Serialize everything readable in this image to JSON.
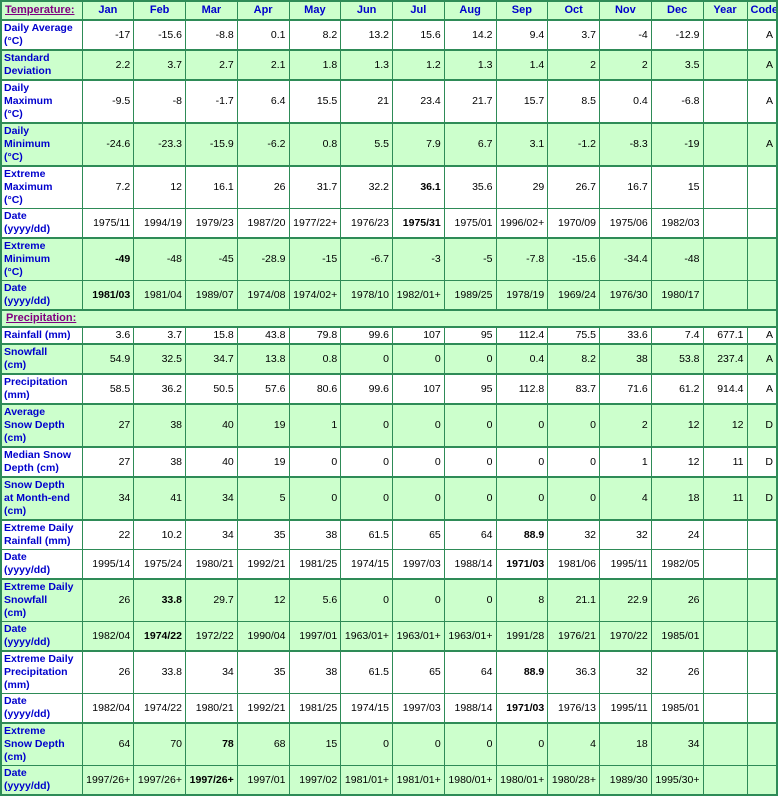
{
  "colors": {
    "border_green": "#2E8B57",
    "row_shade_green": "#CCFFCC",
    "label_blue": "#0000CC",
    "section_link_purple": "#800080",
    "value_black": "#000000"
  },
  "columns": {
    "months": [
      "Jan",
      "Feb",
      "Mar",
      "Apr",
      "May",
      "Jun",
      "Jul",
      "Aug",
      "Sep",
      "Oct",
      "Nov",
      "Dec"
    ],
    "year_label": "Year",
    "code_label": "Code"
  },
  "sections": {
    "temperature": {
      "title": "Temperature:"
    },
    "precipitation": {
      "title": "Precipitation:"
    }
  },
  "temperature_rows": [
    {
      "label": "Daily Average\n(°C)",
      "date": false,
      "shade": false,
      "bold": -1,
      "values": [
        "-17",
        "-15.6",
        "-8.8",
        "0.1",
        "8.2",
        "13.2",
        "15.6",
        "14.2",
        "9.4",
        "3.7",
        "-4",
        "-12.9"
      ],
      "year": "",
      "code": "A"
    },
    {
      "label": "Standard\nDeviation",
      "date": false,
      "shade": true,
      "bold": -1,
      "values": [
        "2.2",
        "3.7",
        "2.7",
        "2.1",
        "1.8",
        "1.3",
        "1.2",
        "1.3",
        "1.4",
        "2",
        "2",
        "3.5"
      ],
      "year": "",
      "code": "A"
    },
    {
      "label": "Daily\nMaximum\n(°C)",
      "date": false,
      "shade": false,
      "bold": -1,
      "values": [
        "-9.5",
        "-8",
        "-1.7",
        "6.4",
        "15.5",
        "21",
        "23.4",
        "21.7",
        "15.7",
        "8.5",
        "0.4",
        "-6.8"
      ],
      "year": "",
      "code": "A"
    },
    {
      "label": "Daily\nMinimum\n(°C)",
      "date": false,
      "shade": true,
      "bold": -1,
      "values": [
        "-24.6",
        "-23.3",
        "-15.9",
        "-6.2",
        "0.8",
        "5.5",
        "7.9",
        "6.7",
        "3.1",
        "-1.2",
        "-8.3",
        "-19"
      ],
      "year": "",
      "code": "A"
    },
    {
      "label": "Extreme\nMaximum\n(°C)",
      "date": false,
      "shade": false,
      "bold": 6,
      "values": [
        "7.2",
        "12",
        "16.1",
        "26",
        "31.7",
        "32.2",
        "36.1",
        "35.6",
        "29",
        "26.7",
        "16.7",
        "15"
      ],
      "year": "",
      "code": ""
    },
    {
      "label": "Date\n(yyyy/dd)",
      "date": true,
      "shade": false,
      "bold": 6,
      "values": [
        "1975/11",
        "1994/19",
        "1979/23",
        "1987/20",
        "1977/22+",
        "1976/23",
        "1975/31",
        "1975/01",
        "1996/02+",
        "1970/09",
        "1975/06",
        "1982/03"
      ],
      "year": "",
      "code": ""
    },
    {
      "label": "Extreme\nMinimum\n(°C)",
      "date": false,
      "shade": true,
      "bold": 0,
      "values": [
        "-49",
        "-48",
        "-45",
        "-28.9",
        "-15",
        "-6.7",
        "-3",
        "-5",
        "-7.8",
        "-15.6",
        "-34.4",
        "-48"
      ],
      "year": "",
      "code": ""
    },
    {
      "label": "Date\n(yyyy/dd)",
      "date": true,
      "shade": true,
      "bold": 0,
      "values": [
        "1981/03",
        "1981/04",
        "1989/07",
        "1974/08",
        "1974/02+",
        "1978/10",
        "1982/01+",
        "1989/25",
        "1978/19",
        "1969/24",
        "1976/30",
        "1980/17"
      ],
      "year": "",
      "code": ""
    }
  ],
  "precipitation_rows": [
    {
      "label": "Rainfall (mm)",
      "date": false,
      "shade": false,
      "bold": -1,
      "values": [
        "3.6",
        "3.7",
        "15.8",
        "43.8",
        "79.8",
        "99.6",
        "107",
        "95",
        "112.4",
        "75.5",
        "33.6",
        "7.4"
      ],
      "year": "677.1",
      "code": "A"
    },
    {
      "label": "Snowfall\n(cm)",
      "date": false,
      "shade": true,
      "bold": -1,
      "values": [
        "54.9",
        "32.5",
        "34.7",
        "13.8",
        "0.8",
        "0",
        "0",
        "0",
        "0.4",
        "8.2",
        "38",
        "53.8"
      ],
      "year": "237.4",
      "code": "A"
    },
    {
      "label": "Precipitation\n(mm)",
      "date": false,
      "shade": false,
      "bold": -1,
      "values": [
        "58.5",
        "36.2",
        "50.5",
        "57.6",
        "80.6",
        "99.6",
        "107",
        "95",
        "112.8",
        "83.7",
        "71.6",
        "61.2"
      ],
      "year": "914.4",
      "code": "A"
    },
    {
      "label": "Average\nSnow Depth\n(cm)",
      "date": false,
      "shade": true,
      "bold": -1,
      "values": [
        "27",
        "38",
        "40",
        "19",
        "1",
        "0",
        "0",
        "0",
        "0",
        "0",
        "2",
        "12"
      ],
      "year": "12",
      "code": "D"
    },
    {
      "label": "Median Snow\nDepth (cm)",
      "date": false,
      "shade": false,
      "bold": -1,
      "values": [
        "27",
        "38",
        "40",
        "19",
        "0",
        "0",
        "0",
        "0",
        "0",
        "0",
        "1",
        "12"
      ],
      "year": "11",
      "code": "D"
    },
    {
      "label": "Snow Depth\nat Month-end\n(cm)",
      "date": false,
      "shade": true,
      "bold": -1,
      "values": [
        "34",
        "41",
        "34",
        "5",
        "0",
        "0",
        "0",
        "0",
        "0",
        "0",
        "4",
        "18"
      ],
      "year": "11",
      "code": "D"
    },
    {
      "label": "Extreme Daily\nRainfall (mm)",
      "date": false,
      "shade": false,
      "bold": 8,
      "values": [
        "22",
        "10.2",
        "34",
        "35",
        "38",
        "61.5",
        "65",
        "64",
        "88.9",
        "32",
        "32",
        "24"
      ],
      "year": "",
      "code": ""
    },
    {
      "label": "Date\n(yyyy/dd)",
      "date": true,
      "shade": false,
      "bold": 8,
      "values": [
        "1995/14",
        "1975/24",
        "1980/21",
        "1992/21",
        "1981/25",
        "1974/15",
        "1997/03",
        "1988/14",
        "1971/03",
        "1981/06",
        "1995/11",
        "1982/05"
      ],
      "year": "",
      "code": ""
    },
    {
      "label": "Extreme Daily\nSnowfall\n(cm)",
      "date": false,
      "shade": true,
      "bold": 1,
      "values": [
        "26",
        "33.8",
        "29.7",
        "12",
        "5.6",
        "0",
        "0",
        "0",
        "8",
        "21.1",
        "22.9",
        "26"
      ],
      "year": "",
      "code": ""
    },
    {
      "label": "Date\n(yyyy/dd)",
      "date": true,
      "shade": true,
      "bold": 1,
      "values": [
        "1982/04",
        "1974/22",
        "1972/22",
        "1990/04",
        "1997/01",
        "1963/01+",
        "1963/01+",
        "1963/01+",
        "1991/28",
        "1976/21",
        "1970/22",
        "1985/01"
      ],
      "year": "",
      "code": ""
    },
    {
      "label": "Extreme Daily\nPrecipitation\n(mm)",
      "date": false,
      "shade": false,
      "bold": 8,
      "values": [
        "26",
        "33.8",
        "34",
        "35",
        "38",
        "61.5",
        "65",
        "64",
        "88.9",
        "36.3",
        "32",
        "26"
      ],
      "year": "",
      "code": ""
    },
    {
      "label": "Date\n(yyyy/dd)",
      "date": true,
      "shade": false,
      "bold": 8,
      "values": [
        "1982/04",
        "1974/22",
        "1980/21",
        "1992/21",
        "1981/25",
        "1974/15",
        "1997/03",
        "1988/14",
        "1971/03",
        "1976/13",
        "1995/11",
        "1985/01"
      ],
      "year": "",
      "code": ""
    },
    {
      "label": "Extreme\nSnow Depth\n(cm)",
      "date": false,
      "shade": true,
      "bold": 2,
      "values": [
        "64",
        "70",
        "78",
        "68",
        "15",
        "0",
        "0",
        "0",
        "0",
        "4",
        "18",
        "34"
      ],
      "year": "",
      "code": ""
    },
    {
      "label": "Date\n(yyyy/dd)",
      "date": true,
      "shade": true,
      "bold": 2,
      "values": [
        "1997/26+",
        "1997/26+",
        "1997/26+",
        "1997/01",
        "1997/02",
        "1981/01+",
        "1981/01+",
        "1980/01+",
        "1980/01+",
        "1980/28+",
        "1989/30",
        "1995/30+"
      ],
      "year": "",
      "code": ""
    }
  ]
}
